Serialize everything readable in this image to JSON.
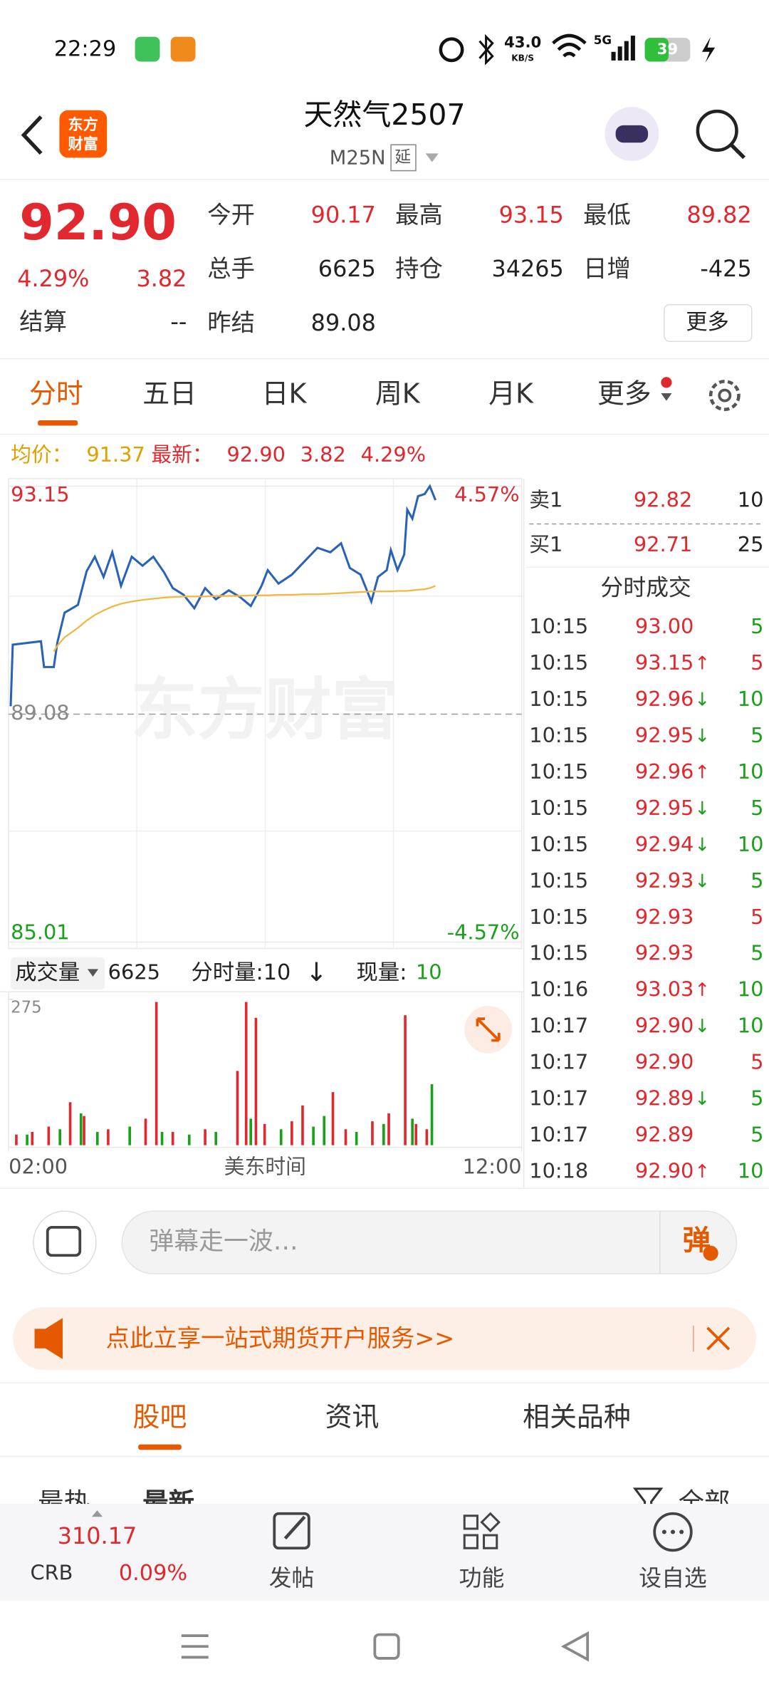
{
  "status_bar": {
    "time": "22:29",
    "speed": "43.0",
    "speed_unit": "KB/S",
    "signal": "5G",
    "battery": "39"
  },
  "header": {
    "logo": [
      "东方",
      "财富"
    ],
    "title": "天然气2507",
    "code": "M25N",
    "badge": "延"
  },
  "quote": {
    "price": "92.90",
    "change_pct": "4.29%",
    "change": "3.82",
    "fields": [
      {
        "label": "今开",
        "value": "90.17",
        "color": "#e0282e"
      },
      {
        "label": "最高",
        "value": "93.15",
        "color": "#e0282e"
      },
      {
        "label": "最低",
        "value": "89.82",
        "color": "#e0282e"
      },
      {
        "label": "总手",
        "value": "6625",
        "color": "#222222"
      },
      {
        "label": "持仓",
        "value": "34265",
        "color": "#222222"
      },
      {
        "label": "日增",
        "value": "-425",
        "color": "#222222"
      },
      {
        "label": "结算",
        "value": "--",
        "color": "#222222"
      },
      {
        "label": "昨结",
        "value": "89.08",
        "color": "#222222"
      }
    ],
    "more": "更多"
  },
  "tabs": {
    "items": [
      "分时",
      "五日",
      "日K",
      "周K",
      "月K",
      "更多"
    ],
    "active": 0
  },
  "info_bar": {
    "avg_label": "均价：",
    "avg": "91.37",
    "latest_label": "最新：",
    "latest": "92.90",
    "change": "3.82",
    "change_pct": "4.29%"
  },
  "chart_data": [
    {
      "type": "line",
      "watermark": "东方财富",
      "xlabel": "美东时间",
      "x": [
        2.04,
        2.08,
        2.63,
        2.69,
        2.88,
        2.95,
        3.09,
        3.35,
        3.52,
        3.68,
        3.85,
        4.02,
        4.19,
        4.4,
        4.61,
        4.82,
        5.03,
        5.2,
        5.41,
        5.62,
        5.83,
        6.04,
        6.29,
        6.51,
        6.72,
        6.93,
        7.05,
        7.26,
        7.52,
        7.77,
        8.02,
        8.27,
        8.48,
        8.65,
        8.86,
        9.07,
        9.2,
        9.37,
        9.45,
        9.58,
        9.71,
        9.77,
        9.87,
        9.98,
        10.11,
        10.21,
        10.32
      ],
      "series": [
        {
          "color": "#2a62b8",
          "values": [
            89.22,
            90.32,
            90.38,
            89.92,
            89.92,
            90.36,
            90.89,
            91.03,
            91.63,
            91.89,
            91.53,
            91.97,
            91.37,
            91.89,
            91.73,
            91.89,
            91.61,
            91.33,
            91.21,
            90.97,
            91.33,
            91.13,
            91.29,
            91.17,
            91.01,
            91.37,
            91.65,
            91.41,
            91.57,
            91.81,
            92.05,
            91.97,
            92.13,
            91.69,
            91.57,
            91.09,
            91.53,
            91.65,
            92.01,
            91.65,
            91.93,
            92.73,
            92.57,
            92.97,
            93.01,
            93.15,
            92.9
          ]
        },
        {
          "color": "#f0b840",
          "values": [
            null,
            null,
            null,
            null,
            90.2,
            90.3,
            90.45,
            90.62,
            90.75,
            90.85,
            90.93,
            91.0,
            91.05,
            91.09,
            91.12,
            91.14,
            91.16,
            91.17,
            91.18,
            91.18,
            91.18,
            91.19,
            91.19,
            91.19,
            91.2,
            91.2,
            91.2,
            91.21,
            91.21,
            91.22,
            91.22,
            91.23,
            91.24,
            91.25,
            91.26,
            91.27,
            91.27,
            91.27,
            91.27,
            91.28,
            91.28,
            91.28,
            91.29,
            91.3,
            91.31,
            91.33,
            91.37
          ]
        }
      ],
      "xlim": [
        2,
        12
      ],
      "xticks": [
        {
          "value": 2,
          "label": "02:00"
        },
        {
          "value": 12,
          "label": "12:00"
        }
      ],
      "ylim": [
        85.01,
        93.15
      ],
      "yticks": [
        93.15,
        89.08,
        85.01
      ],
      "y2lim": [
        -4.57,
        4.57
      ],
      "y2ticks": [
        {
          "value": 4.57,
          "label": "4.57%"
        },
        {
          "value": -4.57,
          "label": "-4.57%"
        }
      ],
      "grid": true
    },
    {
      "type": "bar",
      "xlim": [
        2,
        12
      ],
      "ylim": [
        0,
        275
      ],
      "yticks": [
        275
      ],
      "series": [
        {
          "color": "#e0282e",
          "x": [
            2.15,
            2.46,
            2.78,
            3.2,
            3.47,
            3.94,
            4.67,
            4.88,
            5.2,
            5.83,
            6.46,
            6.63,
            6.82,
            6.99,
            7.52,
            7.73,
            8.32,
            8.57,
            9.09,
            9.41,
            9.73,
            9.94,
            10.15
          ],
          "values": [
            20,
            25,
            35,
            81,
            55,
            30,
            50,
            270,
            25,
            30,
            140,
            270,
            240,
            40,
            45,
            75,
            100,
            30,
            45,
            60,
            245,
            40,
            30
          ]
        },
        {
          "color": "#1aa01a",
          "x": [
            2.36,
            3.0,
            3.41,
            3.73,
            4.36,
            4.99,
            5.52,
            6.04,
            6.72,
            7.31,
            7.94,
            8.15,
            8.78,
            9.31,
            9.87,
            10.25
          ],
          "values": [
            20,
            30,
            60,
            25,
            35,
            25,
            20,
            25,
            50,
            30,
            35,
            55,
            25,
            40,
            50,
            115
          ]
        }
      ]
    }
  ],
  "volume_info": {
    "label": "成交量",
    "total": "6625",
    "tick_label": "分时量:10",
    "arrow": "↓",
    "now_label": "现量:",
    "now": "10"
  },
  "order_book": [
    {
      "label": "卖1",
      "price": "92.82",
      "volume": "10"
    },
    {
      "label": "买1",
      "price": "92.71",
      "volume": "25"
    }
  ],
  "trades": {
    "title": "分时成交",
    "rows": [
      {
        "time": "10:15",
        "price": "93.00",
        "volume": "5",
        "volume_color": "#1aa01a"
      },
      {
        "time": "10:15",
        "price": "93.15",
        "arrow": "↑",
        "volume": "5",
        "volume_color": "#e0282e"
      },
      {
        "time": "10:15",
        "price": "92.96",
        "arrow": "↓",
        "volume": "10",
        "volume_color": "#1aa01a"
      },
      {
        "time": "10:15",
        "price": "92.95",
        "arrow": "↓",
        "volume": "5",
        "volume_color": "#1aa01a"
      },
      {
        "time": "10:15",
        "price": "92.96",
        "arrow": "↑",
        "volume": "10",
        "volume_color": "#1aa01a"
      },
      {
        "time": "10:15",
        "price": "92.95",
        "arrow": "↓",
        "volume": "5",
        "volume_color": "#1aa01a"
      },
      {
        "time": "10:15",
        "price": "92.94",
        "arrow": "↓",
        "volume": "10",
        "volume_color": "#1aa01a"
      },
      {
        "time": "10:15",
        "price": "92.93",
        "arrow": "↓",
        "volume": "5",
        "volume_color": "#1aa01a"
      },
      {
        "time": "10:15",
        "price": "92.93",
        "volume": "5",
        "volume_color": "#e0282e"
      },
      {
        "time": "10:15",
        "price": "92.93",
        "volume": "5",
        "volume_color": "#1aa01a"
      },
      {
        "time": "10:16",
        "price": "93.03",
        "arrow": "↑",
        "volume": "10",
        "volume_color": "#1aa01a"
      },
      {
        "time": "10:17",
        "price": "92.90",
        "arrow": "↓",
        "volume": "10",
        "volume_color": "#1aa01a"
      },
      {
        "time": "10:17",
        "price": "92.90",
        "volume": "5",
        "volume_color": "#e0282e"
      },
      {
        "time": "10:17",
        "price": "92.89",
        "arrow": "↓",
        "volume": "5",
        "volume_color": "#1aa01a"
      },
      {
        "time": "10:17",
        "price": "92.89",
        "volume": "5",
        "volume_color": "#1aa01a"
      },
      {
        "time": "10:18",
        "price": "92.90",
        "arrow": "↑",
        "volume": "10",
        "volume_color": "#1aa01a"
      }
    ]
  },
  "chat": {
    "placeholder": "弹幕走一波…",
    "button": "弹"
  },
  "banner": {
    "text": "点此立享一站式期货开户服务>>"
  },
  "section_tabs": {
    "items": [
      "股吧",
      "资讯",
      "相关品种"
    ],
    "active": 0
  },
  "sub_tabs": {
    "items": [
      "最热",
      "最新"
    ],
    "filter": "全部"
  },
  "bottom_bar": {
    "index_value": "310.17",
    "index_name": "CRB",
    "index_change": "0.09%",
    "actions": [
      "发帖",
      "功能",
      "设自选"
    ]
  }
}
